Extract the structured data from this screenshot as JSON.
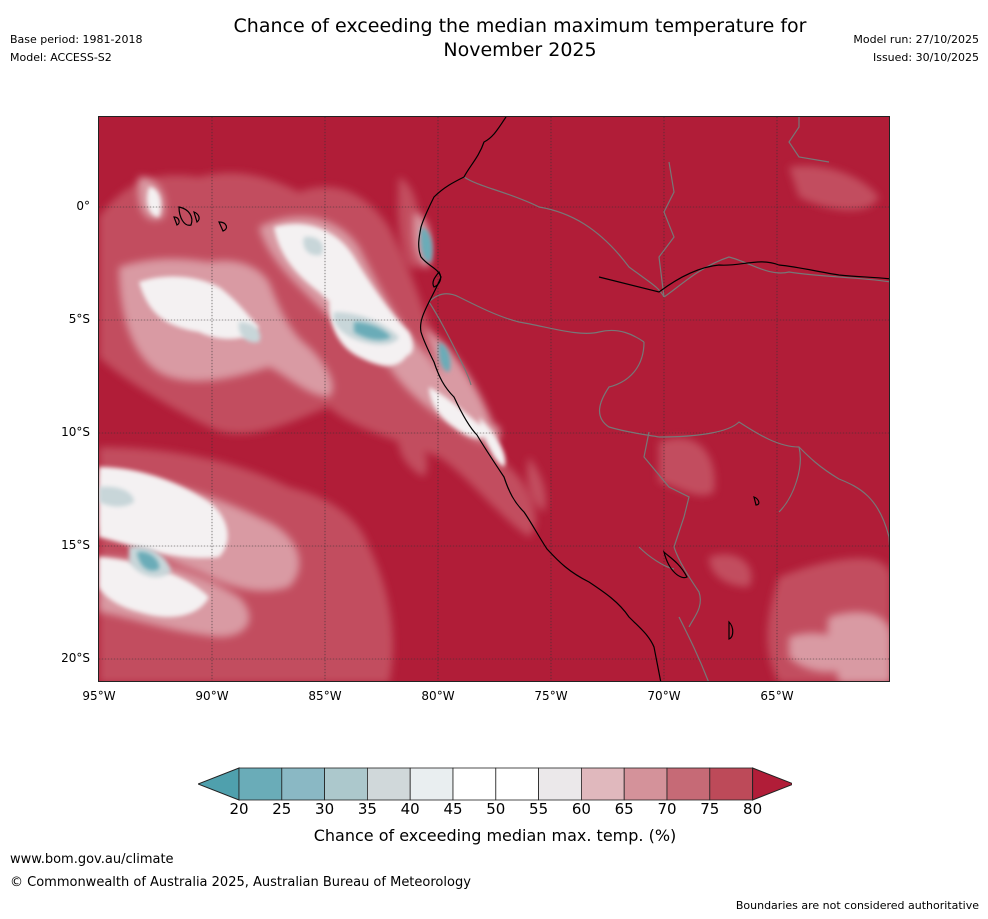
{
  "title_line1": "Chance of exceeding the median maximum temperature for",
  "title_line2": "November 2025",
  "meta_left": {
    "base_period": "Base period: 1981-2018",
    "model": "Model: ACCESS-S2"
  },
  "meta_right": {
    "model_run": "Model run: 27/10/2025",
    "issued": "Issued: 30/10/2025"
  },
  "map": {
    "lat_labels": [
      "0°",
      "5°S",
      "10°S",
      "15°S",
      "20°S"
    ],
    "lon_labels": [
      "95°W",
      "90°W",
      "85°W",
      "80°W",
      "75°W",
      "70°W",
      "65°W"
    ]
  },
  "colorbar": {
    "ticks": [
      "20",
      "25",
      "30",
      "35",
      "40",
      "45",
      "50",
      "55",
      "60",
      "65",
      "70",
      "75",
      "80"
    ],
    "colors": [
      "#4fa0ad",
      "#6aacb8",
      "#8ab8c4",
      "#acc8cc",
      "#d0d8da",
      "#e9eef0",
      "#ffffff",
      "#ffffff",
      "#ebe8ea",
      "#e0b8bd",
      "#d4929a",
      "#c66a76",
      "#bd4a59",
      "#b11d38"
    ],
    "label": "Chance of exceeding median max. temp. (%)"
  },
  "footer": {
    "url": "www.bom.gov.au/climate",
    "copyright": "© Commonwealth of Australia 2025, Australian Bureau of Meteorology",
    "note": "Boundaries are not considered authoritative"
  }
}
